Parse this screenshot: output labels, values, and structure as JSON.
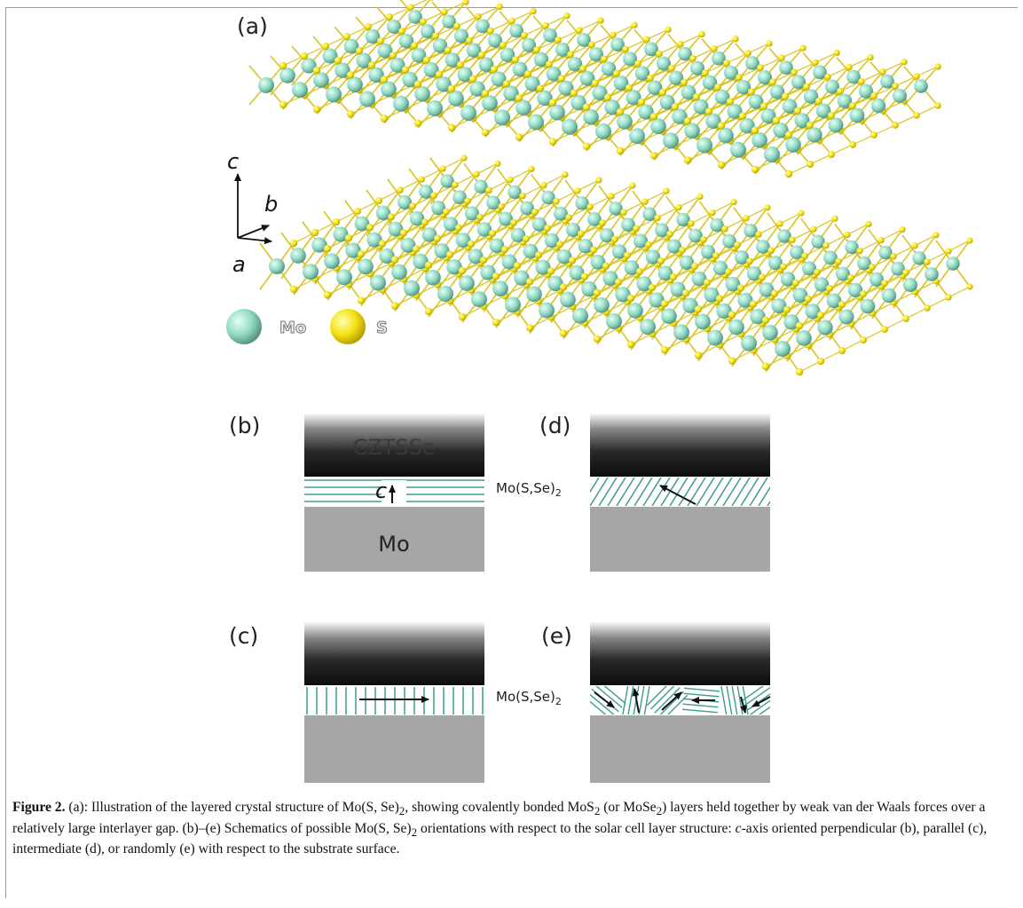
{
  "panels": {
    "a": {
      "label": "(a)",
      "axes": {
        "c": "c",
        "b": "b",
        "a": "a"
      },
      "legend": [
        {
          "label": "Mo",
          "color": "#8fd6c0"
        },
        {
          "label": "S",
          "color": "#f2e012"
        }
      ]
    },
    "b": {
      "label": "(b)",
      "top_layer": "CZTSSe",
      "bottom_layer": "Mo",
      "axis_label": "c"
    },
    "c": {
      "label": "(c)"
    },
    "d": {
      "label": "(d)"
    },
    "e": {
      "label": "(e)"
    },
    "interlayer_label_base": "Mo(S,Se)",
    "interlayer_label_sub": "2"
  },
  "caption": {
    "lead": "Figure 2.",
    "parts": [
      "(a): Illustration of the layered crystal structure of Mo(S, Se)",
      "2",
      ", showing covalently bonded MoS",
      "2",
      " (or MoSe",
      "2",
      ") layers held together by weak van der Waals forces over a relatively large interlayer gap. (b)–(e) Schematics of possible Mo(S, Se)",
      "2",
      " orientations with respect to the solar cell layer structure: ",
      "c",
      "-axis oriented perpendicular (b), parallel (c), intermediate (d), or randomly (e) with respect to the substrate surface."
    ]
  },
  "colors": {
    "layer_lines": "#3c9c8c",
    "substrate": "#a6a6a6",
    "absorber_dark": "#111111",
    "mo_atom": "#8fd6c0",
    "s_atom": "#f2e012",
    "bond": "#d8c520"
  }
}
